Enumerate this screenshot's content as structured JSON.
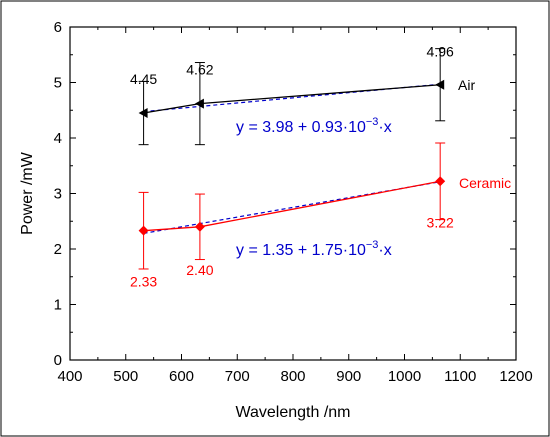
{
  "chart_data": {
    "type": "line",
    "xlabel": "Wavelength /nm",
    "ylabel": "Power /mW",
    "xlim": [
      400,
      1200
    ],
    "ylim": [
      0,
      6
    ],
    "x_ticks": [
      "400",
      "500",
      "600",
      "700",
      "800",
      "900",
      "1000",
      "1100",
      "1200"
    ],
    "y_ticks": [
      "0",
      "1",
      "2",
      "3",
      "4",
      "5",
      "6"
    ],
    "grid": false,
    "series": [
      {
        "name": "Air",
        "color": "#000000",
        "marker": "left-triangle",
        "x": [
          532,
          633,
          1064
        ],
        "y": [
          4.45,
          4.62,
          4.96
        ],
        "y_err": [
          0.57,
          0.74,
          0.65
        ],
        "data_labels": [
          "4.45",
          "4.62",
          "4.96"
        ],
        "data_label_position": "above",
        "fit": {
          "equation_prefix": "y = 3.98 + 0.93·10",
          "equation_exp": "−3",
          "equation_suffix": "·x",
          "intercept": 3.98,
          "slope": 0.00093,
          "color": "#0000cc"
        }
      },
      {
        "name": "Ceramic",
        "color": "#ff0000",
        "marker": "diamond",
        "x": [
          532,
          633,
          1064
        ],
        "y": [
          2.33,
          2.4,
          3.22
        ],
        "y_err": [
          0.69,
          0.59,
          0.69
        ],
        "data_labels": [
          "2.33",
          "2.40",
          "3.22"
        ],
        "data_label_position": "below",
        "fit": {
          "equation_prefix": "y = 1.35 + 1.75·10",
          "equation_exp": "−3",
          "equation_suffix": "·x",
          "intercept": 1.35,
          "slope": 0.00175,
          "color": "#0000cc"
        }
      }
    ]
  }
}
